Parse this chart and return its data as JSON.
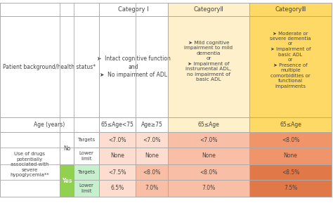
{
  "colors": {
    "white": "#FFFFFF",
    "cat2_header": "#FFF0CC",
    "cat3_header": "#FFD966",
    "cat1_light": "#FCDDD0",
    "cat2_light": "#F9BFA6",
    "cat3_light": "#F0956A",
    "cat3_dark": "#E07848",
    "yes_row_bg": "#C6EFCE",
    "yes_label_bg": "#92D050",
    "border": "#AAAAAA"
  },
  "category_headers": [
    "Category I",
    "CategoryⅡ",
    "CategoryⅢ"
  ],
  "patient_status_text": "Patient background/health status*",
  "cat1_desc": "➤  Intact cognitive function\nand\n➤  No impairment of ADL",
  "cat2_desc": "➤ Mild cognitive\nimpairment to mild\ndementia\nor\n➤ Impairment of\ninstrumental ADL,\nno impairment of\nbasic ADL",
  "cat3_desc": "➤ Moderate or\nsevere dementia\nor\n➤ Impairment of\nbasic ADL\nor\n➤ Presence of\nmultiple\ncomorbidities or\nfunctional\nimpairments",
  "age_label_col": "Age (years)",
  "age_labels": [
    "65≤Age<75",
    "Age≥75",
    "65≤Age",
    "65≤Age"
  ],
  "data_rows": {
    "no_targets": [
      "<7.0%",
      "<7.0%",
      "<7.0%",
      "<8.0%"
    ],
    "no_lower": [
      "None",
      "None",
      "None",
      "None"
    ],
    "yes_targets": [
      "<7.5%",
      "<8.0%",
      "<8.0%",
      "<8.5%"
    ],
    "yes_lower": [
      "6.5%",
      "7.0%",
      "7.0%",
      "7.5%"
    ]
  },
  "left_label": "Use of drugs\npotentially\nassociated with\nsevere\nhypoglycemia**",
  "no_label": "No",
  "yes_label": "Yes",
  "targets_label": "Targets",
  "lower_label": "Lower\nlimit"
}
